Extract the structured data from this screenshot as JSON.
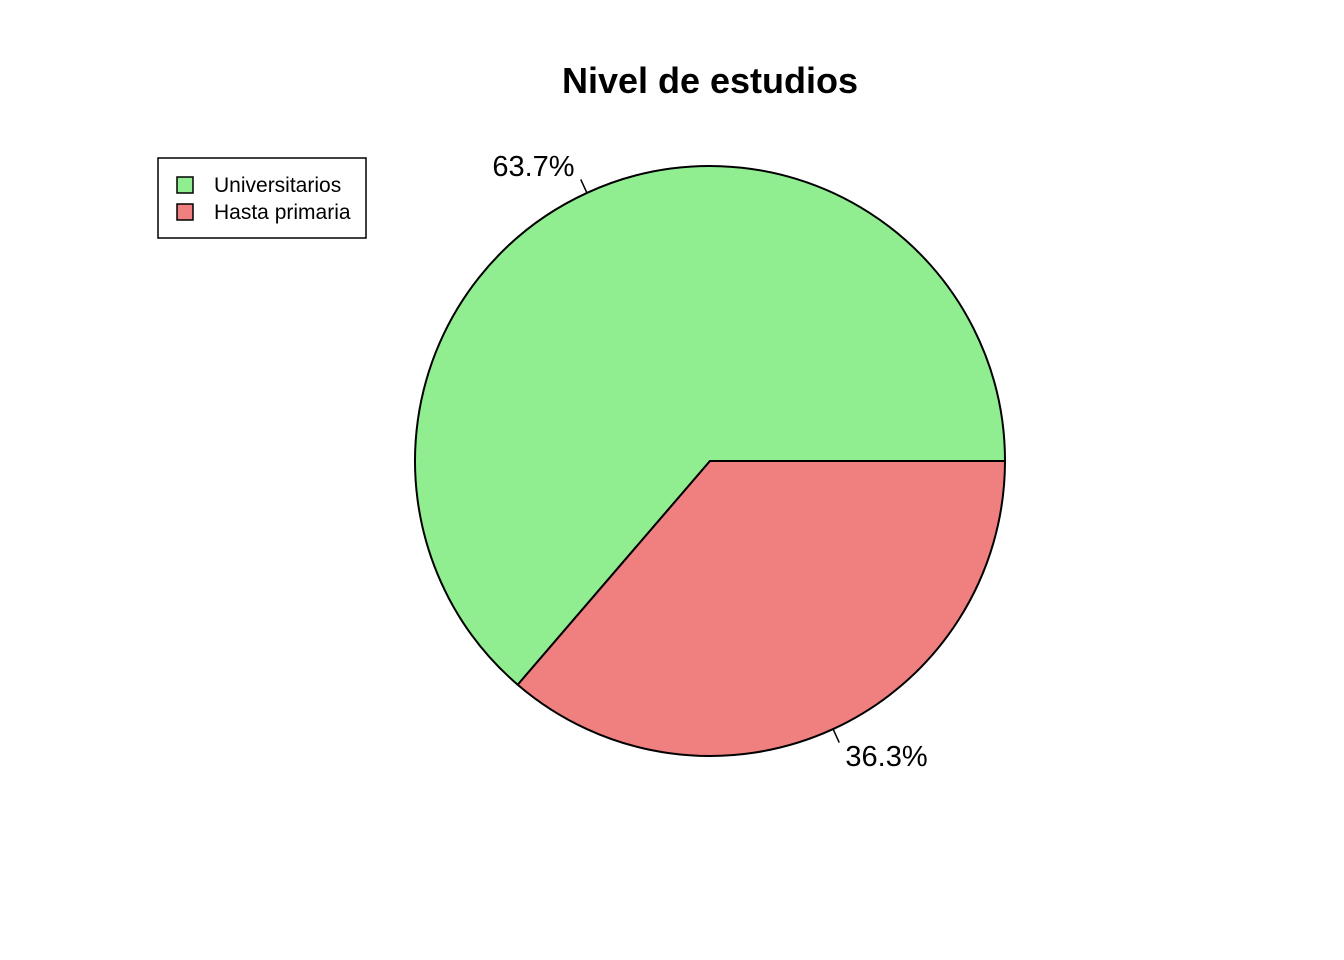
{
  "chart_data": {
    "type": "pie",
    "title": "Nivel de estudios",
    "slices": [
      {
        "label": "Universitarios",
        "value": 63.7,
        "display": "63.7%",
        "color": "#90EE90"
      },
      {
        "label": "Hasta primaria",
        "value": 36.3,
        "display": "36.3%",
        "color": "#F08080"
      }
    ],
    "legend": {
      "placement": "top-left",
      "items": [
        "Universitarios",
        "Hasta primaria"
      ]
    },
    "start": "3 o'clock",
    "direction": "counterclockwise"
  }
}
